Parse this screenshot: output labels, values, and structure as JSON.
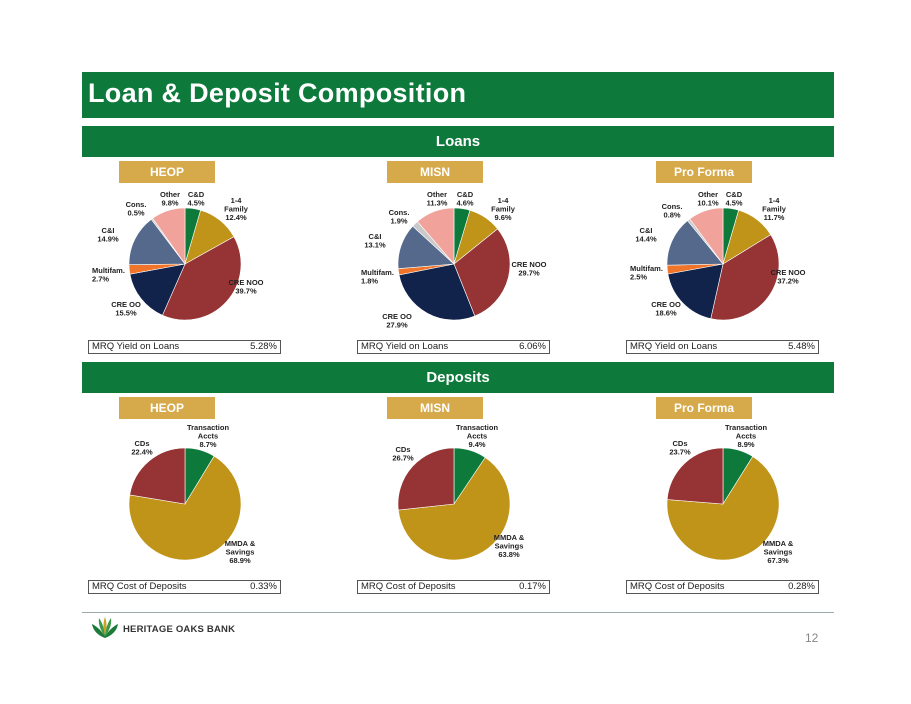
{
  "title": "Loan & Deposit Composition",
  "sections": {
    "loans": "Loans",
    "deposits": "Deposits"
  },
  "colors": {
    "green": "#0d7a3c",
    "gold": "#c09418",
    "red": "#963334",
    "navy": "#11224b",
    "orange": "#f0742a",
    "slate": "#55698c",
    "grey": "#c9c9c9",
    "pink": "#f1a39b"
  },
  "footer": {
    "bank_name": "HERITAGE OAKS BANK",
    "page": "12"
  },
  "chart_data": [
    {
      "type": "pie",
      "group": "Loans",
      "entity": "HEOP",
      "labels": [
        "C&D",
        "1-4 Family",
        "CRE NOO",
        "CRE OO",
        "Multifam.",
        "C&I",
        "Cons.",
        "Other"
      ],
      "values": [
        4.5,
        12.4,
        39.7,
        15.5,
        2.7,
        14.9,
        0.5,
        9.8
      ],
      "value_labels": [
        "4.5%",
        "12.4%",
        "39.7%",
        "15.5%",
        "2.7%",
        "14.9%",
        "0.5%",
        "9.8%"
      ],
      "metric_label": "MRQ Yield on Loans",
      "metric_value": "5.28%"
    },
    {
      "type": "pie",
      "group": "Loans",
      "entity": "MISN",
      "labels": [
        "C&D",
        "1-4 Family",
        "CRE NOO",
        "CRE OO",
        "Multifam.",
        "C&I",
        "Cons.",
        "Other"
      ],
      "values": [
        4.6,
        9.6,
        29.7,
        27.9,
        1.8,
        13.1,
        1.9,
        11.3
      ],
      "value_labels": [
        "4.6%",
        "9.6%",
        "29.7%",
        "27.9%",
        "1.8%",
        "13.1%",
        "1.9%",
        "11.3%"
      ],
      "metric_label": "MRQ Yield on Loans",
      "metric_value": "6.06%"
    },
    {
      "type": "pie",
      "group": "Loans",
      "entity": "Pro Forma",
      "labels": [
        "C&D",
        "1-4 Family",
        "CRE NOO",
        "CRE OO",
        "Multifam.",
        "C&I",
        "Cons.",
        "Other"
      ],
      "values": [
        4.5,
        11.7,
        37.2,
        18.6,
        2.5,
        14.4,
        0.8,
        10.1
      ],
      "value_labels": [
        "4.5%",
        "11.7%",
        "37.2%",
        "18.6%",
        "2.5%",
        "14.4%",
        "0.8%",
        "10.1%"
      ],
      "metric_label": "MRQ Yield on Loans",
      "metric_value": "5.48%"
    },
    {
      "type": "pie",
      "group": "Deposits",
      "entity": "HEOP",
      "labels": [
        "Transaction Accts",
        "MMDA & Savings",
        "CDs"
      ],
      "values": [
        8.7,
        68.9,
        22.4
      ],
      "value_labels": [
        "8.7%",
        "68.9%",
        "22.4%"
      ],
      "metric_label": "MRQ Cost of Deposits",
      "metric_value": "0.33%"
    },
    {
      "type": "pie",
      "group": "Deposits",
      "entity": "MISN",
      "labels": [
        "Transaction Accts",
        "MMDA & Savings",
        "CDs"
      ],
      "values": [
        9.4,
        63.8,
        26.7
      ],
      "value_labels": [
        "9.4%",
        "63.8%",
        "26.7%"
      ],
      "metric_label": "MRQ Cost of Deposits",
      "metric_value": "0.17%"
    },
    {
      "type": "pie",
      "group": "Deposits",
      "entity": "Pro Forma",
      "labels": [
        "Transaction Accts",
        "MMDA & Savings",
        "CDs"
      ],
      "values": [
        8.9,
        67.3,
        23.7
      ],
      "value_labels": [
        "8.9%",
        "67.3%",
        "23.7%"
      ],
      "metric_label": "MRQ Cost of Deposits",
      "metric_value": "0.28%"
    }
  ]
}
